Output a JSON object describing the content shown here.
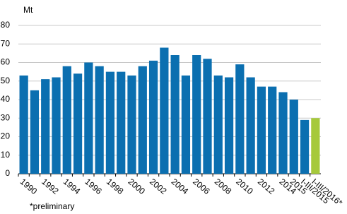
{
  "chart_data": {
    "type": "bar",
    "unit_label": "Mt",
    "footnote": "*preliminary",
    "categories": [
      "1990",
      null,
      "1992",
      null,
      "1994",
      null,
      "1996",
      null,
      "1998",
      null,
      "2000",
      null,
      "2002",
      null,
      "2004",
      null,
      "2006",
      null,
      "2008",
      null,
      "2010",
      null,
      "2012",
      null,
      "2014",
      "2015",
      "I-III/2015",
      "I-III/2016*"
    ],
    "values": [
      53,
      45,
      51,
      52,
      58,
      54,
      60,
      58,
      55,
      55,
      53,
      58,
      61,
      68,
      64,
      53,
      64,
      62,
      53,
      52,
      59,
      52,
      47,
      47,
      44,
      40,
      29,
      30
    ],
    "colors": [
      "#0b6fb0",
      "#0b6fb0",
      "#0b6fb0",
      "#0b6fb0",
      "#0b6fb0",
      "#0b6fb0",
      "#0b6fb0",
      "#0b6fb0",
      "#0b6fb0",
      "#0b6fb0",
      "#0b6fb0",
      "#0b6fb0",
      "#0b6fb0",
      "#0b6fb0",
      "#0b6fb0",
      "#0b6fb0",
      "#0b6fb0",
      "#0b6fb0",
      "#0b6fb0",
      "#0b6fb0",
      "#0b6fb0",
      "#0b6fb0",
      "#0b6fb0",
      "#0b6fb0",
      "#0b6fb0",
      "#0b6fb0",
      "#0b6fb0",
      "#a6c93b"
    ],
    "ylim": [
      0,
      80
    ],
    "yticks": [
      0,
      10,
      20,
      30,
      40,
      50,
      60,
      70,
      80
    ],
    "grid": true
  }
}
